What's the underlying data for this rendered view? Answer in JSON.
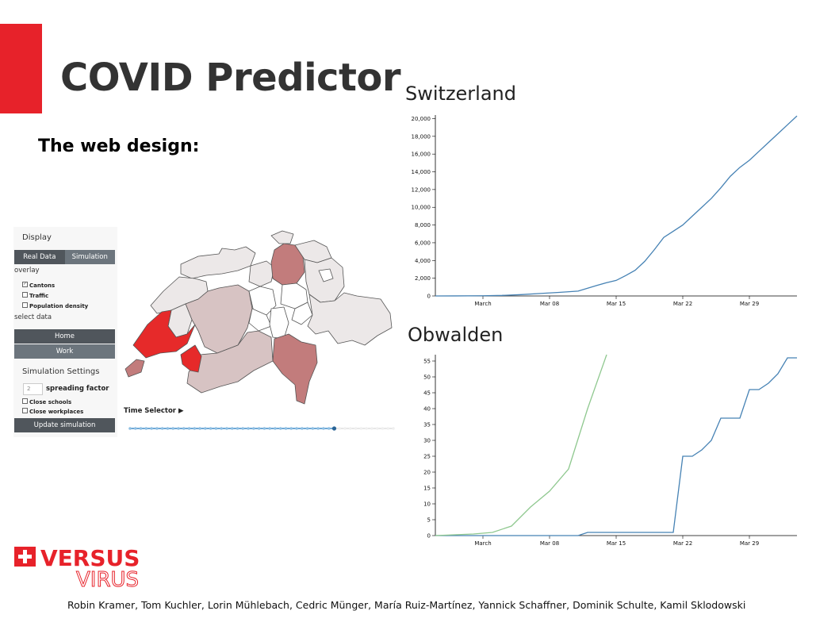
{
  "slide": {
    "title": "COVID Predictor",
    "subtitle": "The web design:",
    "footer": "Robin Kramer, Tom Kuchler, Lorin Mühlebach, Cedric Münger, María Ruiz-Martínez, Yannick Schaffner, Dominik Schulte, Kamil Sklodowski",
    "accent_color": "#e7222a"
  },
  "logo": {
    "top_word": "VERSUS",
    "bottom_word": "VIRUS",
    "icon": "swiss-cross-icon",
    "color": "#e7222a"
  },
  "panel": {
    "display_label": "Display",
    "tabs": [
      {
        "label": "Real Data",
        "active": true
      },
      {
        "label": "Simulation",
        "active": false
      }
    ],
    "overlay_label": "overlay",
    "overlays": [
      {
        "label": "Cantons",
        "checked": true
      },
      {
        "label": "Traffic",
        "checked": false
      },
      {
        "label": "Population density",
        "checked": false
      }
    ],
    "select_data_label": "select data",
    "data_buttons": [
      {
        "label": "Home"
      },
      {
        "label": "Work"
      }
    ],
    "sim_settings_label": "Simulation Settings",
    "spreading_value": "2",
    "spreading_label": "spreading factor",
    "sim_options": [
      {
        "label": "Close schools",
        "checked": false
      },
      {
        "label": "Close workplaces",
        "checked": false
      }
    ],
    "update_button": "Update simulation"
  },
  "time_selector": {
    "label": "Time Selector ▶",
    "steps": 50,
    "current": 38
  },
  "map": {
    "colors": {
      "high": "#e62a2a",
      "medium": "#c27c7c",
      "low": "#d7c3c3",
      "faint": "#ece8e8",
      "none": "#ffffff"
    }
  },
  "chart_data": [
    {
      "type": "line",
      "title": "Switzerland",
      "x_tick_labels": [
        "March",
        "Mar 08",
        "Mar 15",
        "Mar 22",
        "Mar 29"
      ],
      "y_ticks": [
        0,
        2000,
        4000,
        6000,
        8000,
        10000,
        12000,
        14000,
        16000,
        18000,
        20000
      ],
      "y_tick_labels": [
        "0",
        "2,000",
        "4,000",
        "6,000",
        "8,000",
        "10,000",
        "12,000",
        "14,000",
        "16,000",
        "18,000",
        "20,000"
      ],
      "ylim": [
        0,
        20400
      ],
      "grid": false,
      "series": [
        {
          "color": "#4682b4",
          "x": [
            "Feb 25",
            "Feb 27",
            "Mar 01",
            "Mar 03",
            "Mar 05",
            "Mar 07",
            "Mar 09",
            "Mar 11",
            "Mar 13",
            "Mar 14",
            "Mar 15",
            "Mar 16",
            "Mar 17",
            "Mar 18",
            "Mar 19",
            "Mar 20",
            "Mar 21",
            "Mar 22",
            "Mar 23",
            "Mar 24",
            "Mar 25",
            "Mar 26",
            "Mar 27",
            "Mar 28",
            "Mar 29",
            "Mar 30",
            "Mar 31",
            "Apr 01",
            "Apr 02",
            "Apr 03"
          ],
          "y": [
            0,
            5,
            20,
            60,
            150,
            280,
            400,
            550,
            1200,
            1500,
            1750,
            2300,
            2900,
            3900,
            5200,
            6600,
            7300,
            8000,
            9000,
            10000,
            11000,
            12200,
            13500,
            14500,
            15300,
            16300,
            17300,
            18300,
            19300,
            20300
          ]
        }
      ]
    },
    {
      "type": "line",
      "title": "Obwalden",
      "x_tick_labels": [
        "March",
        "Mar 08",
        "Mar 15",
        "Mar 22",
        "Mar 29"
      ],
      "y_ticks": [
        0,
        5,
        10,
        15,
        20,
        25,
        30,
        35,
        40,
        45,
        50,
        55
      ],
      "y_tick_labels": [
        "0",
        "5",
        "10",
        "15",
        "20",
        "25",
        "30",
        "35",
        "40",
        "45",
        "50",
        "55"
      ],
      "ylim": [
        0,
        57
      ],
      "grid": false,
      "series": [
        {
          "color": "#4682b4",
          "x": [
            "Feb 25",
            "Mar 11",
            "Mar 12",
            "Mar 21",
            "Mar 22",
            "Mar 23",
            "Mar 24",
            "Mar 25",
            "Mar 26",
            "Mar 27",
            "Mar 28",
            "Mar 29",
            "Mar 30",
            "Mar 31",
            "Apr 01",
            "Apr 02",
            "Apr 03"
          ],
          "y": [
            0,
            0,
            1,
            1,
            25,
            25,
            27,
            30,
            37,
            37,
            37,
            46,
            46,
            48,
            51,
            56,
            56
          ]
        },
        {
          "color": "#8fc88f",
          "x": [
            "Feb 25",
            "Feb 29",
            "Mar 02",
            "Mar 04",
            "Mar 06",
            "Mar 08",
            "Mar 10",
            "Mar 12",
            "Mar 14"
          ],
          "y": [
            0,
            0.5,
            1,
            3,
            9,
            14,
            21,
            40,
            57
          ]
        }
      ]
    }
  ]
}
